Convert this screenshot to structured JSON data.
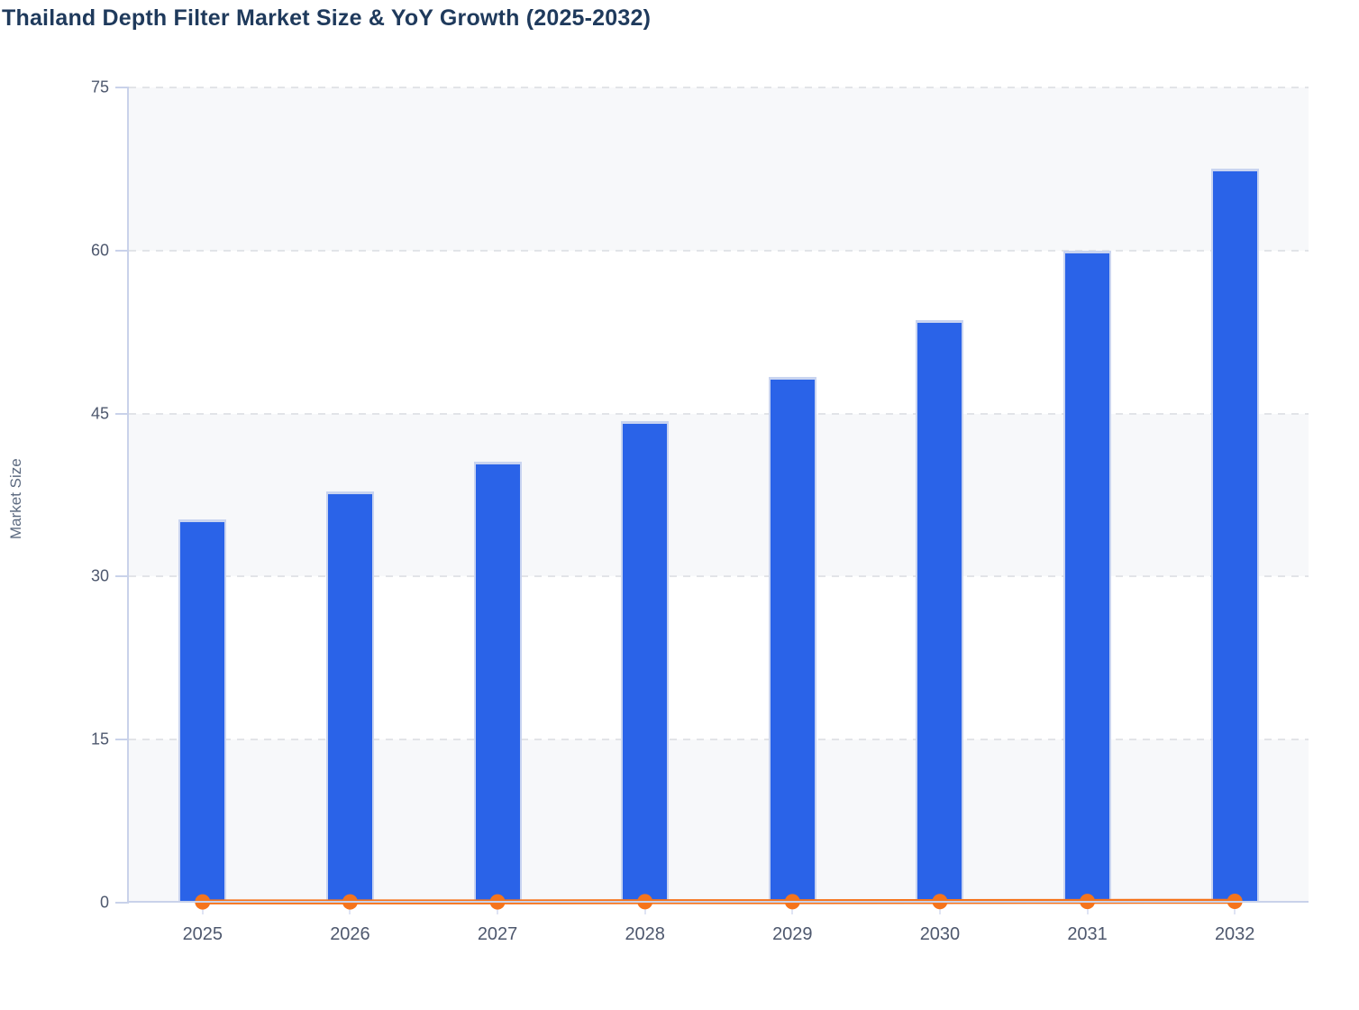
{
  "page": {
    "title": "Thailand Depth Filter Market Size & YoY Growth (2025-2032)"
  },
  "chart_data": {
    "type": "bar",
    "subtype": "combo-bar-line",
    "title": "Thailand Depth Filter Market Size & YoY Growth (2025-2032)",
    "categories": [
      "2025",
      "2026",
      "2027",
      "2028",
      "2029",
      "2030",
      "2031",
      "2032"
    ],
    "series": [
      {
        "name": "Market Size",
        "type": "bar",
        "color": "#2a63e8",
        "border_color": "#c9d4f0",
        "values": [
          35.3,
          37.8,
          40.6,
          44.3,
          48.4,
          53.6,
          60.0,
          67.5
        ]
      },
      {
        "name": "YoY Growth",
        "type": "line",
        "color": "#f5741c",
        "marker": "circle",
        "values": [
          0.07,
          0.071,
          0.074,
          0.091,
          0.095,
          0.107,
          0.117,
          0.125
        ]
      }
    ],
    "xlabel": "",
    "ylabel": "Market Size",
    "ylim": [
      0,
      75
    ],
    "yticks": [
      0,
      15,
      30,
      45,
      60,
      75
    ],
    "grid": "horizontal-dashed",
    "legend": "none",
    "plot_bands": "alternating horizontal, light gray starting at 0-15 from bottom"
  },
  "colors": {
    "bar_fill": "#2a63e8",
    "bar_border": "#c9d4f0",
    "line": "#f5741c",
    "band": "#f7f8fa",
    "gridline": "#e2e4e8",
    "axis_line": "#c9d2ea",
    "x_tick_mark": "#dfe4f4",
    "title_text": "#1f3a5c",
    "tick_label_text": "#4e586e",
    "axis_title_text": "#5c6a80",
    "background": "#ffffff"
  }
}
